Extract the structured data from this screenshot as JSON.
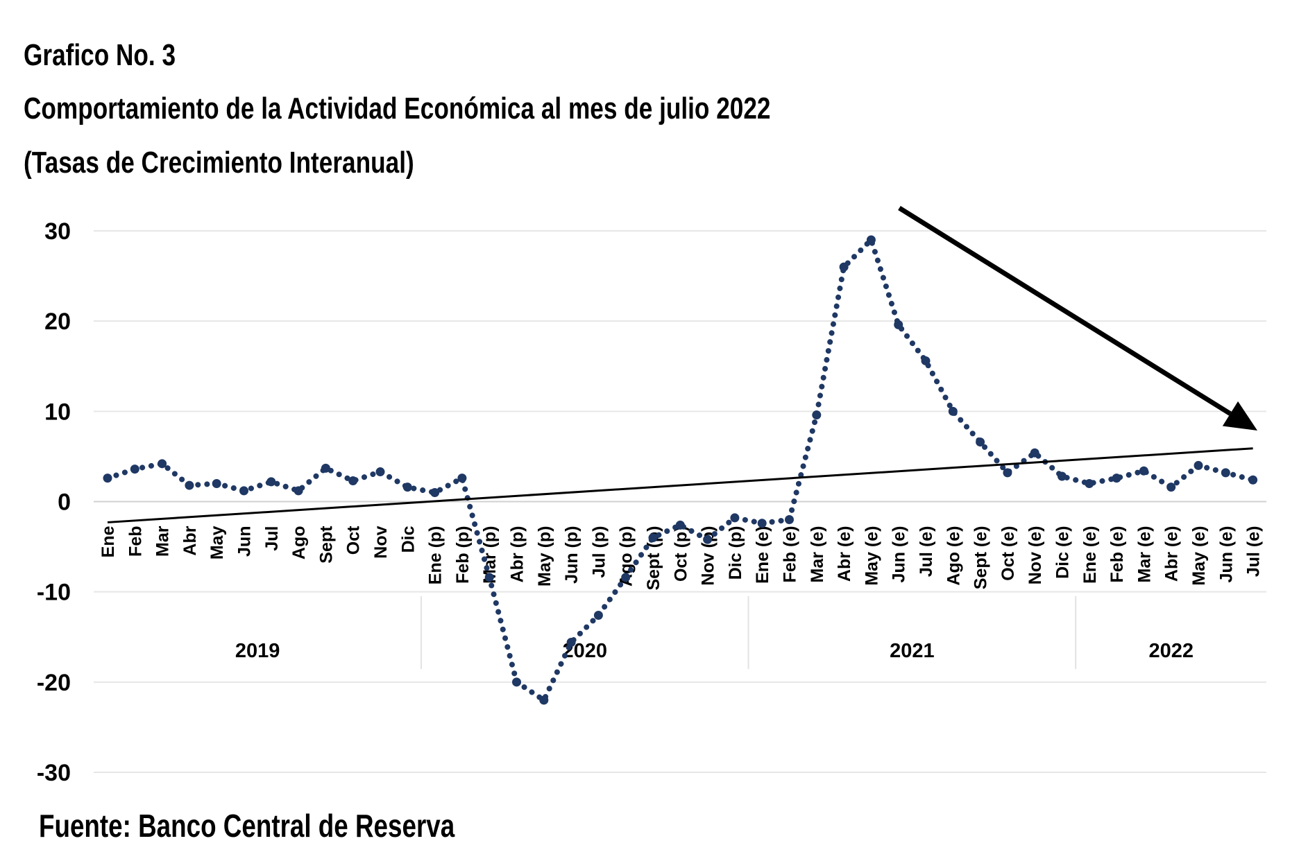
{
  "header": {
    "line1": "Grafico No. 3",
    "line2": "Comportamiento de la Actividad Económica al mes de  julio 2022",
    "line3": "(Tasas de Crecimiento Interanual)"
  },
  "footer": {
    "source": "Fuente: Banco Central de Reserva"
  },
  "chart_data": {
    "type": "line",
    "title": "Comportamiento de la Actividad Económica al mes de  julio 2022",
    "subtitle": "(Tasas de Crecimiento Interanual)",
    "xlabel": "",
    "ylabel": "",
    "ylim": [
      -30,
      30
    ],
    "yticks": [
      30,
      20,
      10,
      0,
      -10,
      -20,
      -30
    ],
    "grid": true,
    "legend": "none",
    "categories": [
      "Ene",
      "Feb",
      "Mar",
      "Abr",
      "May",
      "Jun",
      "Jul",
      "Ago",
      "Sept",
      "Oct",
      "Nov",
      "Dic",
      "Ene (p)",
      "Feb (p)",
      "Mar (p)",
      "Abr (p)",
      "May (p)",
      "Jun (p)",
      "Jul (p)",
      "Ago (p)",
      "Sept (p)",
      "Oct (p)",
      "Nov (p)",
      "Dic (p)",
      "Ene (e)",
      "Feb (e)",
      "Mar (e)",
      "Abr (e)",
      "May (e)",
      "Jun (e)",
      "Jul (e)",
      "Ago (e)",
      "Sept (e)",
      "Oct (e)",
      "Nov (e)",
      "Dic (e)",
      "Ene (e)",
      "Feb (e)",
      "Mar (e)",
      "Abr (e)",
      "May (e)",
      "Jun (e)",
      "Jul (e)"
    ],
    "year_groups": [
      {
        "label": "2019",
        "count": 12
      },
      {
        "label": "2020",
        "count": 12
      },
      {
        "label": "2021",
        "count": 12
      },
      {
        "label": "2022",
        "count": 7
      }
    ],
    "series": [
      {
        "style": "dotted",
        "color": "#1f3864",
        "values": [
          2.6,
          3.6,
          4.2,
          1.8,
          2.0,
          1.2,
          2.2,
          1.2,
          3.7,
          2.3,
          3.3,
          1.6,
          1.0,
          2.6,
          -8.4,
          -20.0,
          -22.0,
          -15.6,
          -12.6,
          -8.4,
          -4.0,
          -2.6,
          -4.2,
          -1.8,
          -2.4,
          -2.0,
          9.6,
          26.0,
          29.0,
          19.6,
          15.6,
          10.0,
          6.6,
          3.2,
          5.4,
          2.8,
          2.0,
          2.6,
          3.4,
          1.6,
          4.0,
          3.2,
          2.4
        ]
      },
      {
        "style": "trend",
        "color": "#000000",
        "start": -2.3,
        "end": 5.9
      }
    ],
    "annotations": [
      {
        "type": "arrow",
        "color": "#000000",
        "direction": "down-right",
        "from_index": 28,
        "to_index": 42
      }
    ]
  }
}
